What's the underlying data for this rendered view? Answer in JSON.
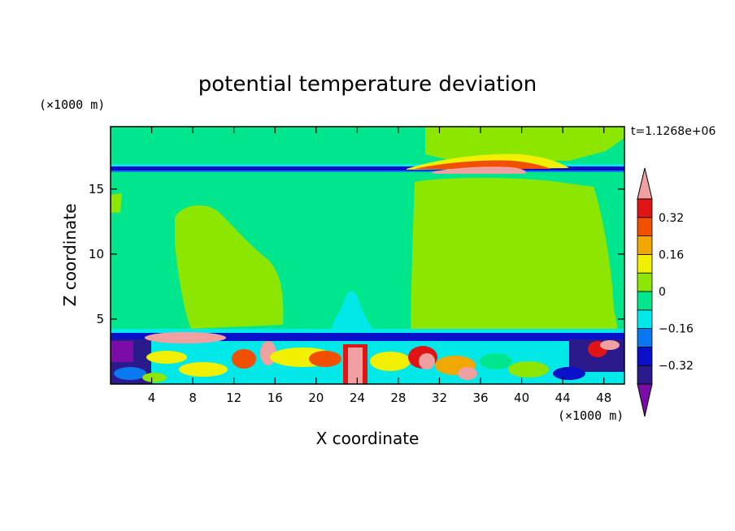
{
  "chart_data": {
    "type": "heatmap",
    "title": "potential temperature deviation",
    "xlabel": "X coordinate",
    "ylabel": "Z coordinate",
    "x_unit": "(×1000 m)",
    "y_unit": "(×1000 m)",
    "time_label": "t=1.1268e+06",
    "xlim": [
      0,
      50
    ],
    "ylim": [
      0,
      19.8
    ],
    "x_ticks": [
      4,
      8,
      12,
      16,
      20,
      24,
      28,
      32,
      36,
      40,
      44,
      48
    ],
    "y_ticks": [
      5,
      10,
      15
    ],
    "colorbar": {
      "levels": [
        -0.4,
        -0.32,
        -0.24,
        -0.16,
        -0.08,
        0,
        0.08,
        0.16,
        0.24,
        0.32,
        0.4
      ],
      "colors": [
        "#7b0ca8",
        "#2a1a8c",
        "#0a0fc8",
        "#0a78f0",
        "#00e8e8",
        "#00e68c",
        "#8ce600",
        "#f0f000",
        "#f0a800",
        "#f05000",
        "#e01414",
        "#f0a0a0"
      ],
      "tick_labels": [
        "0.32",
        "0.16",
        "0",
        "−0.16",
        "−0.32"
      ],
      "tick_values": [
        0.32,
        0.16,
        0,
        -0.16,
        -0.32
      ]
    },
    "regions": [
      {
        "label": "background",
        "value": -0.04
      },
      {
        "label": "left plume",
        "x": [
          6,
          16
        ],
        "z": [
          3.8,
          13.8
        ],
        "value": 0.04
      },
      {
        "label": "right plume",
        "x": [
          29,
          49
        ],
        "z": [
          3.8,
          19.8
        ],
        "value": 0.04
      },
      {
        "label": "central updraft",
        "x": [
          21,
          26
        ],
        "z": [
          3.8,
          7.2
        ],
        "value": -0.12
      },
      {
        "label": "tropopause band",
        "x": [
          0,
          50
        ],
        "z": [
          16.5,
          17.0
        ],
        "value": -0.3
      },
      {
        "label": "upper warm anomaly",
        "x": [
          30,
          42
        ],
        "z": [
          16.6,
          17.6
        ],
        "value": 0.4
      },
      {
        "label": "inversion band",
        "x": [
          0,
          50
        ],
        "z": [
          3.6,
          3.9
        ],
        "value": -0.3
      },
      {
        "label": "boundary layer turbulence",
        "x": [
          0,
          50
        ],
        "z": [
          0,
          3.6
        ],
        "value_range": [
          -0.4,
          0.4
        ]
      }
    ]
  }
}
